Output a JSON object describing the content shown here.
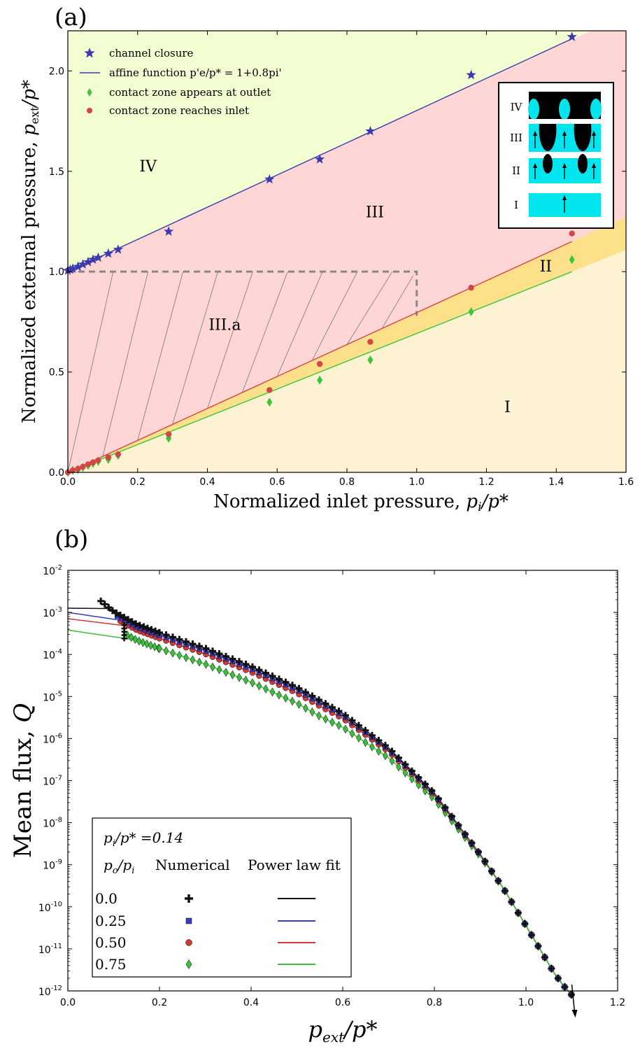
{
  "chart_data": [
    {
      "type": "scatter",
      "panel_label": "(a)",
      "xlabel": "Normalized inlet pressure, ",
      "xlabel_var": "p",
      "xlabel_sub": "i",
      "xlabel_tail": "/p*",
      "ylabel": "Normalized external pressure, ",
      "ylabel_var": "p",
      "ylabel_sub": "ext",
      "ylabel_tail": "/p*",
      "xlim": [
        0,
        1.6
      ],
      "ylim": [
        0,
        2.2
      ],
      "x_ticks": [
        0.0,
        0.2,
        0.4,
        0.6,
        0.8,
        1.0,
        1.2,
        1.4,
        1.6
      ],
      "x_tick_labels": [
        "0.0",
        "0.2",
        "0.4",
        "0.6",
        "0.8",
        "1.0",
        "1.2",
        "1.4",
        "1.6"
      ],
      "y_ticks": [
        0.0,
        0.5,
        1.0,
        1.5,
        2.0
      ],
      "y_tick_labels": [
        "0.0",
        "0.5",
        "1.0",
        "1.5",
        "2.0"
      ],
      "region_labels": [
        {
          "text": "IV",
          "x": 0.23,
          "y": 1.5
        },
        {
          "text": "III",
          "x": 0.88,
          "y": 1.27
        },
        {
          "text": "III.a",
          "x": 0.45,
          "y": 0.71
        },
        {
          "text": "II",
          "x": 1.37,
          "y": 1.0
        },
        {
          "text": "I",
          "x": 1.26,
          "y": 0.3
        }
      ],
      "colors": {
        "region_IV": "#f3fdd2",
        "region_III": "#ffd6d6",
        "region_II": "#fde08a",
        "region_I": "#fdf3d2",
        "closure": "#3a3aae",
        "inlet": "#d64545",
        "outlet": "#3cc53c",
        "hatch_box": "#888888"
      },
      "legend_entries": [
        "channel closure",
        "affine function p'e/p* = 1+0.8pi'",
        "contact zone appears at outlet",
        "contact zone reaches inlet"
      ],
      "legend_placement": "top-left",
      "series": [
        {
          "name": "channel closure",
          "marker": "star",
          "x": [
            0.0,
            0.007,
            0.014,
            0.029,
            0.043,
            0.058,
            0.072,
            0.087,
            0.116,
            0.144,
            0.289,
            0.578,
            0.722,
            0.867,
            1.156,
            1.445
          ],
          "y": [
            1.005,
            1.01,
            1.015,
            1.025,
            1.036,
            1.048,
            1.06,
            1.07,
            1.09,
            1.11,
            1.2,
            1.46,
            1.56,
            1.7,
            1.98,
            2.17
          ]
        },
        {
          "name": "affine function p'e/p* = 1+0.8pi'",
          "type": "line",
          "x": [
            0.0,
            1.445
          ],
          "y": [
            1.0,
            2.16
          ]
        },
        {
          "name": "contact zone appears at outlet",
          "marker": "diamond",
          "x": [
            0.0,
            0.014,
            0.029,
            0.043,
            0.058,
            0.072,
            0.087,
            0.116,
            0.144,
            0.289,
            0.578,
            0.722,
            0.867,
            1.156,
            1.445
          ],
          "y": [
            0.0,
            0.01,
            0.015,
            0.025,
            0.035,
            0.045,
            0.055,
            0.065,
            0.085,
            0.17,
            0.35,
            0.46,
            0.56,
            0.8,
            1.06
          ]
        },
        {
          "name": "contact zone reaches inlet",
          "marker": "circle",
          "x": [
            0.0,
            0.014,
            0.029,
            0.043,
            0.058,
            0.072,
            0.087,
            0.116,
            0.144,
            0.289,
            0.578,
            0.722,
            0.867,
            1.156,
            1.445
          ],
          "y": [
            0.0,
            0.01,
            0.018,
            0.028,
            0.04,
            0.05,
            0.06,
            0.075,
            0.09,
            0.19,
            0.41,
            0.54,
            0.65,
            0.92,
            1.19
          ]
        }
      ],
      "fit_lines": [
        {
          "color": "inlet",
          "x": [
            0.0,
            1.445
          ],
          "y": [
            0.0,
            1.15
          ]
        },
        {
          "color": "outlet",
          "x": [
            0.0,
            1.445
          ],
          "y": [
            0.0,
            1.0
          ]
        }
      ],
      "inset_labels": [
        "IV",
        "III",
        "II",
        "I"
      ]
    },
    {
      "type": "scatter",
      "panel_label": "(b)",
      "xlabel_main": "p",
      "xlabel_sub": "ext",
      "xlabel_tail": "/p*",
      "ylabel": "Mean flux, ",
      "ylabel_var": "Q",
      "xlim": [
        0,
        1.2
      ],
      "ylim_log10": [
        -12,
        -2
      ],
      "y_scale": "log",
      "x_ticks": [
        0.0,
        0.2,
        0.4,
        0.6,
        0.8,
        1.0,
        1.2
      ],
      "x_tick_labels": [
        "0.0",
        "0.2",
        "0.4",
        "0.6",
        "0.8",
        "1.0",
        "1.2"
      ],
      "y_tick_exponents": [
        -2,
        -3,
        -4,
        -5,
        -6,
        -7,
        -8,
        -9,
        -10,
        -11,
        -12
      ],
      "y_tick_base": "10",
      "legend": {
        "title_var": "p",
        "title_sub": "i",
        "title_tail": "/p* =0.14",
        "header_var": "p",
        "header_sub": "o",
        "header_sep": "/",
        "header_var2": "p",
        "header_sub2": "i",
        "col_numerical": "Numerical",
        "col_fit": "Power law fit",
        "rows": [
          "0.0",
          "0.25",
          "0.50",
          "0.75"
        ]
      },
      "series": [
        {
          "name": "0.0",
          "marker": "plus",
          "color": "#111111",
          "offset_log": 0.0,
          "x_start": 0.072,
          "fit_intercept_log": -2.9
        },
        {
          "name": "0.25",
          "marker": "square",
          "color": "#3b3bbf",
          "offset_log": -0.06,
          "x_start": 0.108,
          "fit_intercept_log": -3.0
        },
        {
          "name": "0.50",
          "marker": "circle",
          "color": "#d23a3a",
          "offset_log": -0.14,
          "x_start": 0.115,
          "fit_intercept_log": -3.15
        },
        {
          "name": "0.75",
          "marker": "diamond",
          "color": "#3cbf3c",
          "offset_log": -0.38,
          "x_start": 0.13,
          "fit_intercept_log": -3.42
        }
      ],
      "model": {
        "description_points_x": [
          0.072,
          0.1,
          0.15,
          0.2,
          0.3,
          0.4,
          0.5,
          0.6,
          0.7,
          0.8,
          0.9,
          0.95,
          1.0,
          1.03,
          1.06,
          1.08,
          1.1
        ],
        "description_points_log10Q": [
          -2.73,
          -2.98,
          -3.28,
          -3.48,
          -3.85,
          -4.28,
          -4.78,
          -5.4,
          -6.22,
          -7.3,
          -8.75,
          -9.55,
          -10.45,
          -11.0,
          -11.55,
          -11.85,
          -12.1
        ]
      },
      "arrow": "down-arrow"
    }
  ]
}
